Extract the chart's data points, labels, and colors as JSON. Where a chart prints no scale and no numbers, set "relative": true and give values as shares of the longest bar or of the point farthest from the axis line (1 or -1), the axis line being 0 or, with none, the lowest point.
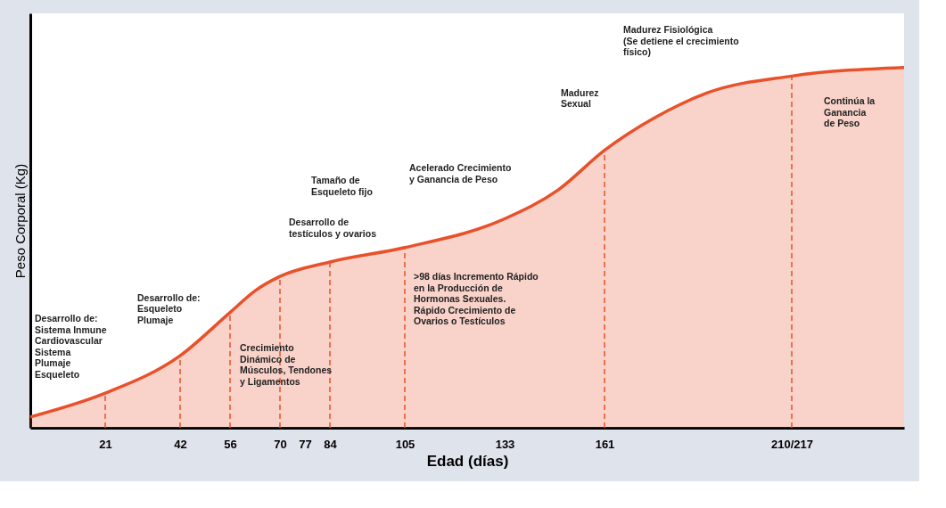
{
  "chart_data": {
    "type": "area",
    "relative": true,
    "xlabel": "Edad (días)",
    "ylabel": "Peso Corporal (Kg)",
    "xlim": [
      0,
      245
    ],
    "xticks": [
      21,
      42,
      56,
      70,
      77,
      84,
      105,
      133,
      161,
      {
        "value": 213.5,
        "label": "210/217"
      }
    ],
    "grid": false,
    "line_style": "solid",
    "series": [
      {
        "color": "#e8512a",
        "x": [
          0,
          21,
          42,
          56,
          63,
          70,
          84,
          105,
          133,
          148,
          161,
          175,
          190,
          213.5,
          245
        ],
        "values": [
          0.03,
          0.096,
          0.2,
          0.32,
          0.38,
          0.42,
          0.46,
          0.5,
          0.58,
          0.66,
          0.77,
          0.86,
          0.93,
          0.976,
          1.0
        ]
      }
    ],
    "ref_lines": [
      {
        "axis": "x",
        "value": 21,
        "color": "#e8512a",
        "line_style": "dashed"
      },
      {
        "axis": "x",
        "value": 42,
        "color": "#e8512a",
        "line_style": "dashed"
      },
      {
        "axis": "x",
        "value": 56,
        "color": "#e8512a",
        "line_style": "dashed"
      },
      {
        "axis": "x",
        "value": 70,
        "color": "#e8512a",
        "line_style": "dashed"
      },
      {
        "axis": "x",
        "value": 84,
        "color": "#e8512a",
        "line_style": "dashed"
      },
      {
        "axis": "x",
        "value": 105,
        "color": "#e8512a",
        "line_style": "dashed"
      },
      {
        "axis": "x",
        "value": 161,
        "color": "#e8512a",
        "line_style": "dashed"
      },
      {
        "axis": "x",
        "value": 213.5,
        "color": "#e8512a",
        "line_style": "dashed"
      }
    ],
    "annotations": [
      "Desarrollo de:\nSistema Inmune\nCardiovascular\nSistema\nPlumaje\nEsqueleto",
      "Desarrollo de:\nEsqueleto\nPlumaje",
      "Crecimiento\nDinámico de\nMúsculos, Tendones\ny Ligamentos",
      "Desarrollo de\ntestículos y ovarios",
      "Tamaño de\nEsqueleto fijo",
      "Acelerado Crecimiento\ny Ganancia de Peso",
      ">98 días Incremento Rápido\nen la Producción de\nHormonas Sexuales.\nRápido Crecimiento de\nOvarios o Testículos",
      "Madurez\nSexual",
      "Madurez Fisiológica\n(Se detiene el crecimiento\nfísico)",
      "Continúa la\nGanancia\nde Peso"
    ]
  }
}
